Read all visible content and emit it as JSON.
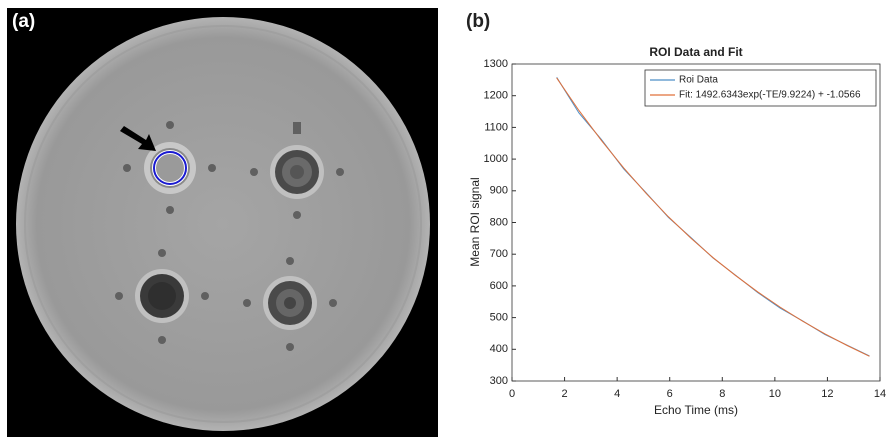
{
  "panels": {
    "a": "(a)",
    "b": "(b)"
  },
  "chart_data": {
    "type": "line",
    "title": "ROI Data and Fit",
    "x_label": "Echo Time (ms)",
    "y_label": "Mean ROI signal",
    "x": [
      1.7,
      2.55,
      3.4,
      4.25,
      5.1,
      5.95,
      6.8,
      7.65,
      8.5,
      9.35,
      10.2,
      11.05,
      11.9,
      12.75,
      13.6
    ],
    "series": [
      {
        "name": "Roi Data",
        "color": "#4d8fc7",
        "values": [
          1258,
          1145,
          1062,
          969,
          894,
          816,
          753,
          688,
          634,
          579,
          530,
          490,
          447,
          413,
          379
        ]
      },
      {
        "name": "Fit: 1492.6343exp(-TE/9.9224) + -1.0566",
        "color": "#e0703a",
        "values": [
          1256,
          1153,
          1059,
          972,
          892,
          818,
          751,
          689,
          633,
          581,
          533,
          489,
          449,
          412,
          378
        ]
      }
    ],
    "xlim": [
      0,
      14
    ],
    "xticks": [
      0,
      2,
      4,
      6,
      8,
      10,
      12,
      14
    ],
    "ylim": [
      300,
      1300
    ],
    "yticks": [
      300,
      400,
      500,
      600,
      700,
      800,
      900,
      1000,
      1100,
      1200,
      1300
    ],
    "grid": false,
    "legend": "top-right"
  }
}
